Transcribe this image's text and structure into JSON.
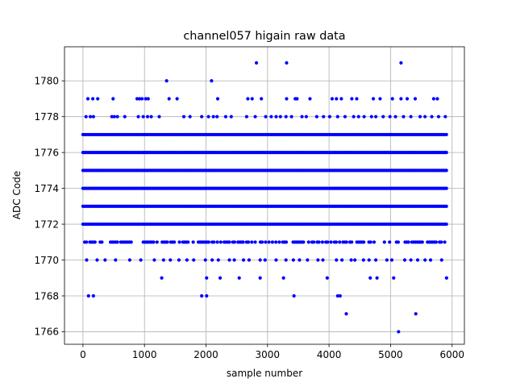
{
  "chart_data": {
    "type": "scatter",
    "title": "channel057 higain raw data",
    "xlabel": "sample number",
    "ylabel": "ADC Code",
    "xlim": [
      -300,
      6200
    ],
    "ylim": [
      1765.3,
      1781.9
    ],
    "xticks": [
      0,
      1000,
      2000,
      3000,
      4000,
      5000,
      6000
    ],
    "yticks": [
      1766,
      1768,
      1770,
      1772,
      1774,
      1776,
      1778,
      1780
    ],
    "grid": true,
    "marker_color": "#0000ff",
    "series": [
      {
        "values_description_excluded": true,
        "dense_levels": [
          1771,
          1772,
          1773,
          1774,
          1775,
          1776,
          1777
        ],
        "x_range": [
          0,
          5930
        ],
        "points": [
          [
            80,
            1779
          ],
          [
            160,
            1779
          ],
          [
            240,
            1779
          ],
          [
            490,
            1779
          ],
          [
            880,
            1779
          ],
          [
            920,
            1779
          ],
          [
            960,
            1779
          ],
          [
            1020,
            1779
          ],
          [
            1060,
            1779
          ],
          [
            1400,
            1779
          ],
          [
            1530,
            1779
          ],
          [
            2190,
            1779
          ],
          [
            2680,
            1779
          ],
          [
            2750,
            1779
          ],
          [
            2900,
            1779
          ],
          [
            3310,
            1779
          ],
          [
            3450,
            1779
          ],
          [
            3480,
            1779
          ],
          [
            3690,
            1779
          ],
          [
            4050,
            1779
          ],
          [
            4120,
            1779
          ],
          [
            4200,
            1779
          ],
          [
            4370,
            1779
          ],
          [
            4450,
            1779
          ],
          [
            4720,
            1779
          ],
          [
            4830,
            1779
          ],
          [
            5030,
            1779
          ],
          [
            5170,
            1779
          ],
          [
            5270,
            1779
          ],
          [
            5400,
            1779
          ],
          [
            5700,
            1779
          ],
          [
            5760,
            1779
          ],
          [
            50,
            1778
          ],
          [
            120,
            1778
          ],
          [
            170,
            1778
          ],
          [
            470,
            1778
          ],
          [
            510,
            1778
          ],
          [
            560,
            1778
          ],
          [
            680,
            1778
          ],
          [
            900,
            1778
          ],
          [
            980,
            1778
          ],
          [
            1050,
            1778
          ],
          [
            1110,
            1778
          ],
          [
            1240,
            1778
          ],
          [
            1640,
            1778
          ],
          [
            1740,
            1778
          ],
          [
            1930,
            1778
          ],
          [
            2040,
            1778
          ],
          [
            2120,
            1778
          ],
          [
            2180,
            1778
          ],
          [
            2320,
            1778
          ],
          [
            2410,
            1778
          ],
          [
            2660,
            1778
          ],
          [
            2800,
            1778
          ],
          [
            2970,
            1778
          ],
          [
            3060,
            1778
          ],
          [
            3140,
            1778
          ],
          [
            3210,
            1778
          ],
          [
            3300,
            1778
          ],
          [
            3390,
            1778
          ],
          [
            3560,
            1778
          ],
          [
            3630,
            1778
          ],
          [
            3800,
            1778
          ],
          [
            3910,
            1778
          ],
          [
            4010,
            1778
          ],
          [
            4140,
            1778
          ],
          [
            4260,
            1778
          ],
          [
            4400,
            1778
          ],
          [
            4480,
            1778
          ],
          [
            4570,
            1778
          ],
          [
            4690,
            1778
          ],
          [
            4760,
            1778
          ],
          [
            4880,
            1778
          ],
          [
            4990,
            1778
          ],
          [
            5080,
            1778
          ],
          [
            5210,
            1778
          ],
          [
            5330,
            1778
          ],
          [
            5480,
            1778
          ],
          [
            5560,
            1778
          ],
          [
            5670,
            1778
          ],
          [
            5780,
            1778
          ],
          [
            5890,
            1778
          ],
          [
            1360,
            1780
          ],
          [
            2090,
            1780
          ],
          [
            2820,
            1781
          ],
          [
            3310,
            1781
          ],
          [
            5170,
            1781
          ],
          [
            60,
            1770
          ],
          [
            230,
            1770
          ],
          [
            360,
            1770
          ],
          [
            530,
            1770
          ],
          [
            760,
            1770
          ],
          [
            940,
            1770
          ],
          [
            1160,
            1770
          ],
          [
            1310,
            1770
          ],
          [
            1420,
            1770
          ],
          [
            1560,
            1770
          ],
          [
            1690,
            1770
          ],
          [
            1800,
            1770
          ],
          [
            1990,
            1770
          ],
          [
            2100,
            1770
          ],
          [
            2200,
            1770
          ],
          [
            2380,
            1770
          ],
          [
            2460,
            1770
          ],
          [
            2610,
            1770
          ],
          [
            2700,
            1770
          ],
          [
            2880,
            1770
          ],
          [
            2960,
            1770
          ],
          [
            3140,
            1770
          ],
          [
            3300,
            1770
          ],
          [
            3420,
            1770
          ],
          [
            3520,
            1770
          ],
          [
            3650,
            1770
          ],
          [
            3820,
            1770
          ],
          [
            3900,
            1770
          ],
          [
            4120,
            1770
          ],
          [
            4210,
            1770
          ],
          [
            4360,
            1770
          ],
          [
            4420,
            1770
          ],
          [
            4560,
            1770
          ],
          [
            4650,
            1770
          ],
          [
            4760,
            1770
          ],
          [
            4940,
            1770
          ],
          [
            5020,
            1770
          ],
          [
            5230,
            1770
          ],
          [
            5330,
            1770
          ],
          [
            5440,
            1770
          ],
          [
            5560,
            1770
          ],
          [
            5650,
            1770
          ],
          [
            5830,
            1770
          ],
          [
            1280,
            1769
          ],
          [
            2010,
            1769
          ],
          [
            2230,
            1769
          ],
          [
            2540,
            1769
          ],
          [
            2880,
            1769
          ],
          [
            3260,
            1769
          ],
          [
            3970,
            1769
          ],
          [
            4670,
            1769
          ],
          [
            4780,
            1769
          ],
          [
            5050,
            1769
          ],
          [
            5910,
            1769
          ],
          [
            90,
            1768
          ],
          [
            170,
            1768
          ],
          [
            1930,
            1768
          ],
          [
            2010,
            1768
          ],
          [
            3430,
            1768
          ],
          [
            4140,
            1768
          ],
          [
            4180,
            1768
          ],
          [
            4280,
            1767
          ],
          [
            5410,
            1767
          ],
          [
            5130,
            1766
          ]
        ]
      }
    ]
  }
}
